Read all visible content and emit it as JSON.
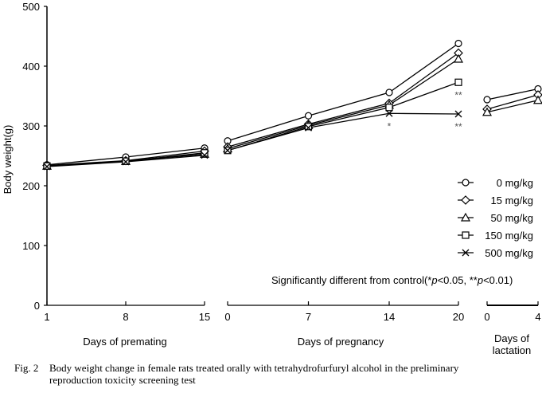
{
  "chart_data": {
    "type": "line",
    "ylabel": "Body weight(g)",
    "ylim": [
      0,
      500
    ],
    "yticks": [
      0,
      100,
      200,
      300,
      400,
      500
    ],
    "grid": false,
    "panels": [
      {
        "xlabel": "Days of premating",
        "x": [
          1,
          8,
          15
        ],
        "xticks": [
          "1",
          "8",
          "15"
        ]
      },
      {
        "xlabel": "Days of pregnancy",
        "x": [
          0,
          7,
          14,
          20
        ],
        "xticks": [
          "0",
          "7",
          "14",
          "20"
        ]
      },
      {
        "xlabel": "Days of lactation",
        "x": [
          0,
          4
        ],
        "xticks": [
          "0",
          "4"
        ]
      }
    ],
    "series": [
      {
        "name": "0 mg/kg",
        "marker": "circle",
        "values": [
          [
            235,
            248,
            263
          ],
          [
            275,
            317,
            356,
            438
          ],
          [
            344,
            362
          ]
        ]
      },
      {
        "name": "15 mg/kg",
        "marker": "diamond",
        "values": [
          [
            234,
            242,
            258
          ],
          [
            265,
            303,
            338,
            422
          ],
          [
            328,
            352
          ]
        ]
      },
      {
        "name": "50 mg/kg",
        "marker": "triangle",
        "values": [
          [
            233,
            241,
            253
          ],
          [
            262,
            301,
            335,
            412
          ],
          [
            323,
            343
          ]
        ]
      },
      {
        "name": "150 mg/kg",
        "marker": "square",
        "values": [
          [
            233,
            241,
            255
          ],
          [
            259,
            299,
            331,
            373
          ],
          [
            null,
            null
          ]
        ]
      },
      {
        "name": "500 mg/kg",
        "marker": "cross",
        "values": [
          [
            232,
            240,
            251
          ],
          [
            259,
            297,
            321,
            320
          ],
          [
            null,
            null
          ]
        ]
      }
    ],
    "annotations": [
      {
        "panel": 1,
        "x": 14,
        "series": "500 mg/kg",
        "text": "*"
      },
      {
        "panel": 1,
        "x": 20,
        "series": "150 mg/kg",
        "text": "**"
      },
      {
        "panel": 1,
        "x": 20,
        "series": "500 mg/kg",
        "text": "**"
      }
    ],
    "legend_position": "right",
    "significance_note": {
      "prefix": "Significantly different from control(",
      "star1": "*",
      "p1": "p",
      "t1": "<0.05, ",
      "star2": "**",
      "p2": "p",
      "t2": "<0.01)"
    }
  },
  "caption": {
    "label": "Fig. 2",
    "line1": "Body weight change in female rats treated orally with tetrahydrofurfuryl alcohol in the preliminary",
    "line2": "reproduction toxicity screening test"
  },
  "panel_titles": {
    "premating": "Days of premating",
    "pregnancy": "Days of pregnancy",
    "lactation_1": "Days of",
    "lactation_2": "lactation"
  }
}
